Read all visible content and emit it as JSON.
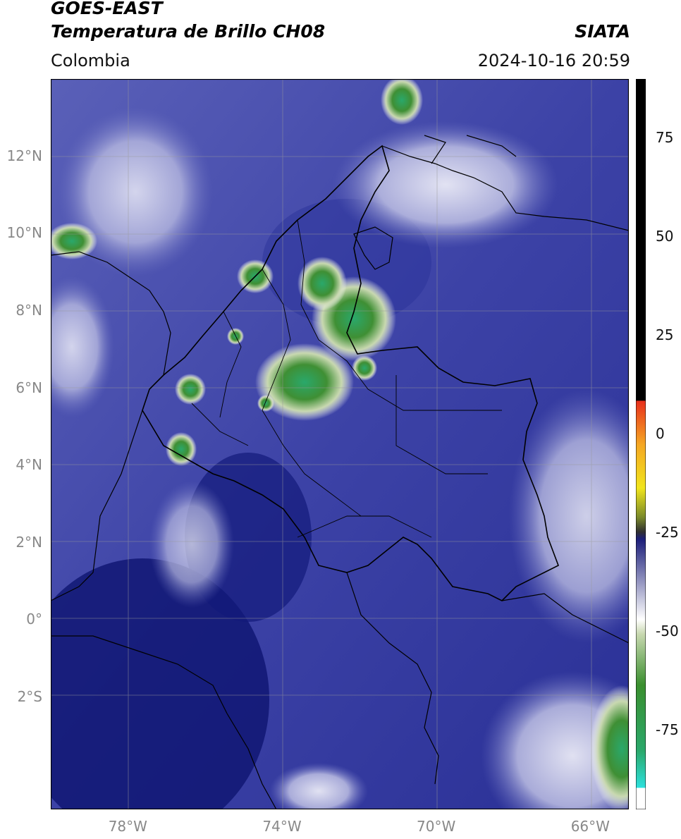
{
  "header": {
    "title_line1": "GOES-EAST",
    "title_line2": "Temperatura de Brillo CH08",
    "organization": "SIATA",
    "region": "Colombia",
    "datetime": "2024-10-16 20:59"
  },
  "map": {
    "lat_ticks": [
      {
        "value": 12,
        "label": "12°N"
      },
      {
        "value": 10,
        "label": "10°N"
      },
      {
        "value": 8,
        "label": "8°N"
      },
      {
        "value": 6,
        "label": "6°N"
      },
      {
        "value": 4,
        "label": "4°N"
      },
      {
        "value": 2,
        "label": "2°N"
      },
      {
        "value": 0,
        "label": "0°"
      },
      {
        "value": -2,
        "label": "2°S"
      }
    ],
    "lon_ticks": [
      {
        "value": -78,
        "label": "78°W"
      },
      {
        "value": -74,
        "label": "74°W"
      },
      {
        "value": -70,
        "label": "70°W"
      },
      {
        "value": -66,
        "label": "66°W"
      }
    ],
    "extent": {
      "lon_min": -80,
      "lon_max": -65,
      "lat_min": -4.9,
      "lat_max": 14.0
    }
  },
  "colorbar": {
    "ticks": [
      75,
      50,
      25,
      0,
      -25,
      -50,
      -75
    ],
    "range": [
      -95,
      90
    ],
    "colors": {
      "black": "#000000",
      "red": "#e8301c",
      "orange": "#f5a623",
      "yellow": "#f1e51c",
      "olive": "#7a8a2a",
      "navy": "#1c1f7a",
      "white": "#ffffff",
      "green": "#3a8f2e",
      "cyan": "#2de0dc"
    }
  }
}
